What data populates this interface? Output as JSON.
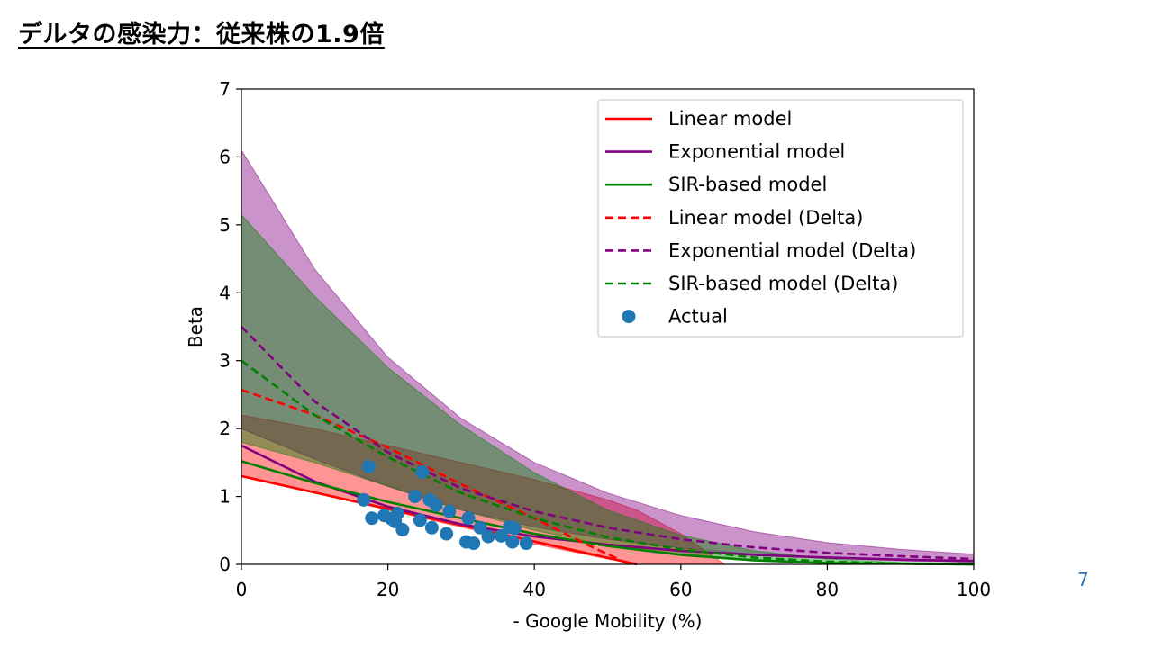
{
  "slide": {
    "title": "デルタの感染力：従来株の1.9倍",
    "page_number": "7"
  },
  "chart_data": {
    "type": "line",
    "xlabel": "- Google Mobility (%)",
    "ylabel": "Beta",
    "xlim": [
      0,
      100
    ],
    "ylim": [
      0,
      7
    ],
    "xticks": [
      "0",
      "20",
      "40",
      "60",
      "80",
      "100"
    ],
    "yticks": [
      "0",
      "1",
      "2",
      "3",
      "4",
      "5",
      "6",
      "7"
    ],
    "grid": false,
    "legend_position": "top-right",
    "legend": [
      "Linear model",
      "Exponential model",
      "SIR-based model",
      "Linear model (Delta)",
      "Exponential model (Delta)",
      "SIR-based model (Delta)",
      "Actual"
    ],
    "colors": {
      "linear": "#ff0000",
      "exponential": "#800080",
      "sir": "#008000",
      "actual": "#1f77b4"
    },
    "bands": [
      {
        "model": "linear",
        "color": "#ff0000",
        "x": [
          0,
          10,
          20,
          30,
          40,
          50,
          54,
          60,
          66
        ],
        "lower": [
          1.3,
          1.05,
          0.8,
          0.55,
          0.3,
          0.08,
          0,
          0,
          0
        ],
        "upper": [
          2.2,
          2.0,
          1.75,
          1.5,
          1.25,
          0.95,
          0.8,
          0.45,
          0
        ]
      },
      {
        "model": "exponential",
        "color": "#800080",
        "x": [
          0,
          10,
          20,
          30,
          40,
          50,
          60,
          70,
          80,
          90,
          100
        ],
        "lower": [
          2.0,
          1.55,
          1.15,
          0.8,
          0.55,
          0.37,
          0.24,
          0.15,
          0.09,
          0.05,
          0.03
        ],
        "upper": [
          6.1,
          4.35,
          3.05,
          2.15,
          1.5,
          1.05,
          0.72,
          0.48,
          0.32,
          0.22,
          0.15
        ]
      },
      {
        "model": "sir",
        "color": "#008000",
        "x": [
          0,
          10,
          20,
          30,
          40,
          50,
          60,
          70,
          80,
          90,
          100
        ],
        "lower": [
          1.8,
          1.5,
          1.15,
          0.8,
          0.5,
          0.28,
          0.13,
          0.05,
          0.02,
          0.005,
          0
        ],
        "upper": [
          5.15,
          3.95,
          2.9,
          2.05,
          1.35,
          0.8,
          0.43,
          0.2,
          0.08,
          0.03,
          0.01
        ]
      }
    ],
    "series": [
      {
        "model": "linear",
        "dashed": false,
        "color": "#ff0000",
        "x": [
          0,
          54
        ],
        "values": [
          1.3,
          0.0
        ]
      },
      {
        "model": "exponential",
        "dashed": false,
        "color": "#800080",
        "x": [
          0,
          10,
          20,
          30,
          40,
          50,
          60,
          70,
          80,
          90,
          100
        ],
        "values": [
          1.75,
          1.22,
          0.85,
          0.59,
          0.41,
          0.29,
          0.2,
          0.14,
          0.1,
          0.07,
          0.05
        ]
      },
      {
        "model": "sir",
        "dashed": false,
        "color": "#008000",
        "x": [
          0,
          10,
          20,
          30,
          40,
          50,
          60,
          70,
          80,
          90,
          100
        ],
        "values": [
          1.52,
          1.2,
          0.92,
          0.68,
          0.45,
          0.27,
          0.14,
          0.06,
          0.02,
          0.01,
          0.0
        ]
      },
      {
        "model": "linear",
        "dashed": true,
        "color": "#ff0000",
        "x": [
          0,
          10,
          20,
          30,
          40,
          47,
          53
        ],
        "values": [
          2.57,
          2.2,
          1.72,
          1.18,
          0.68,
          0.3,
          0.0
        ]
      },
      {
        "model": "exponential",
        "dashed": true,
        "color": "#800080",
        "x": [
          0,
          10,
          20,
          30,
          40,
          50,
          60,
          70,
          80,
          90,
          100
        ],
        "values": [
          3.5,
          2.4,
          1.65,
          1.12,
          0.78,
          0.54,
          0.37,
          0.25,
          0.17,
          0.12,
          0.08
        ]
      },
      {
        "model": "sir",
        "dashed": true,
        "color": "#008000",
        "x": [
          0,
          10,
          20,
          30,
          40,
          50,
          60,
          70,
          80,
          90,
          100
        ],
        "values": [
          3.0,
          2.2,
          1.58,
          1.05,
          0.68,
          0.4,
          0.22,
          0.1,
          0.04,
          0.01,
          0.0
        ]
      }
    ],
    "actual": {
      "x": [
        16.7,
        17.4,
        17.8,
        19.5,
        20.5,
        21.0,
        21.3,
        22.0,
        23.7,
        24.4,
        24.7,
        25.7,
        26.0,
        26.6,
        28.0,
        28.4,
        30.7,
        31.0,
        31.7,
        32.6,
        33.7,
        35.5,
        36.6,
        37.0,
        37.3,
        38.9
      ],
      "values": [
        0.95,
        1.44,
        0.68,
        0.72,
        0.67,
        0.63,
        0.75,
        0.51,
        1.0,
        0.65,
        1.36,
        0.95,
        0.54,
        0.87,
        0.45,
        0.78,
        0.33,
        0.68,
        0.31,
        0.54,
        0.41,
        0.42,
        0.55,
        0.33,
        0.53,
        0.31
      ]
    }
  }
}
